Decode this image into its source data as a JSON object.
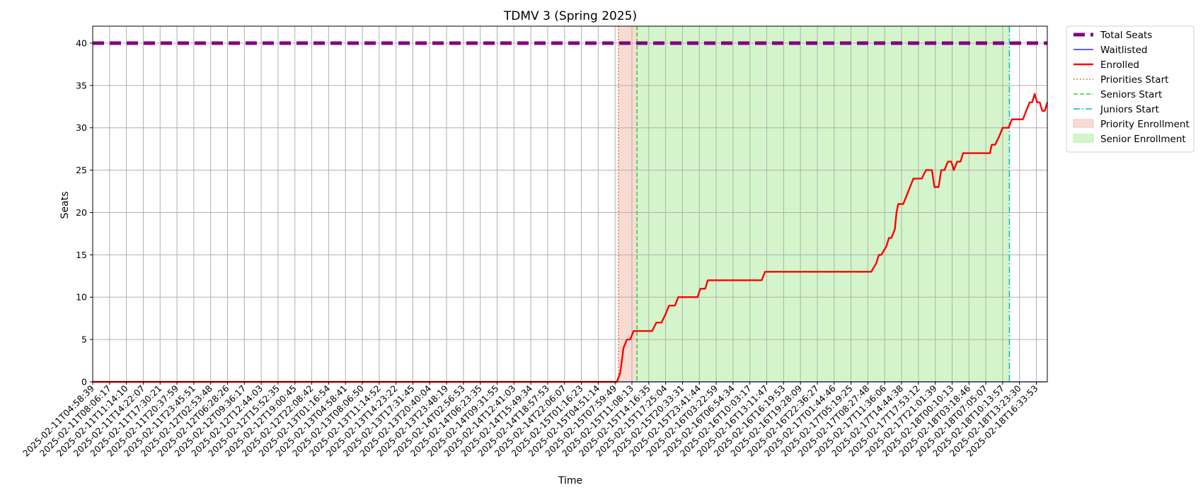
{
  "chart_data": {
    "type": "line",
    "title": "TDMV 3 (Spring 2025)",
    "xlabel": "Time",
    "ylabel": "Seats",
    "ylim": [
      0,
      42
    ],
    "yticks": [
      0,
      5,
      10,
      15,
      20,
      25,
      30,
      35,
      40
    ],
    "grid": true,
    "legend_position": "outside-top-right",
    "x_tick_labels": [
      "2025-02-11T04:58:39",
      "2025-02-11T08:06:17",
      "2025-02-11T11:14:10",
      "2025-02-11T14:22:07",
      "2025-02-11T17:30:21",
      "2025-02-11T20:37:59",
      "2025-02-11T23:45:51",
      "2025-02-12T02:53:48",
      "2025-02-12T06:28:26",
      "2025-02-12T09:36:17",
      "2025-02-12T12:44:03",
      "2025-02-12T15:52:35",
      "2025-02-12T19:00:45",
      "2025-02-12T22:08:42",
      "2025-02-13T01:16:54",
      "2025-02-13T04:58:41",
      "2025-02-13T08:06:50",
      "2025-02-13T11:14:52",
      "2025-02-13T14:23:22",
      "2025-02-13T17:31:45",
      "2025-02-13T20:40:04",
      "2025-02-13T23:48:19",
      "2025-02-14T02:56:53",
      "2025-02-14T06:23:35",
      "2025-02-14T09:31:55",
      "2025-02-14T12:41:03",
      "2025-02-14T15:49:34",
      "2025-02-14T18:57:53",
      "2025-02-14T22:06:07",
      "2025-02-15T01:16:23",
      "2025-02-15T04:51:14",
      "2025-02-15T07:59:49",
      "2025-02-15T11:08:13",
      "2025-02-15T14:16:35",
      "2025-02-15T17:25:04",
      "2025-02-15T20:33:31",
      "2025-02-15T23:41:44",
      "2025-02-16T03:22:59",
      "2025-02-16T06:54:34",
      "2025-02-16T10:03:17",
      "2025-02-16T13:11:47",
      "2025-02-16T16:19:53",
      "2025-02-16T19:28:09",
      "2025-02-16T22:36:27",
      "2025-02-17T01:44:46",
      "2025-02-17T05:19:25",
      "2025-02-17T08:27:48",
      "2025-02-17T11:36:06",
      "2025-02-17T14:44:38",
      "2025-02-17T17:53:12",
      "2025-02-17T21:01:39",
      "2025-02-18T00:10:13",
      "2025-02-18T03:18:46",
      "2025-02-18T07:05:07",
      "2025-02-18T10:13:57",
      "2025-02-18T13:23:30",
      "2025-02-18T16:33:53"
    ],
    "x_range": [
      0,
      56.65
    ],
    "series": [
      {
        "name": "Total Seats",
        "color": "#800080",
        "style": "dashed-thick",
        "points": [
          [
            0,
            40
          ],
          [
            56.65,
            40
          ]
        ]
      },
      {
        "name": "Waitlisted",
        "color": "#0000ff",
        "style": "solid-thin",
        "points": [
          [
            0,
            0
          ],
          [
            56.65,
            0
          ]
        ]
      },
      {
        "name": "Enrolled",
        "color": "#ff0000",
        "style": "solid-thick",
        "points": [
          [
            0,
            0
          ],
          [
            31.1,
            0
          ],
          [
            31.3,
            1
          ],
          [
            31.5,
            4
          ],
          [
            31.7,
            5
          ],
          [
            31.9,
            5
          ],
          [
            32.1,
            6
          ],
          [
            33.0,
            6
          ],
          [
            33.2,
            6
          ],
          [
            33.45,
            7
          ],
          [
            33.75,
            7
          ],
          [
            34.0,
            8
          ],
          [
            34.2,
            9
          ],
          [
            34.55,
            9
          ],
          [
            34.75,
            10
          ],
          [
            35.9,
            10
          ],
          [
            36.05,
            11
          ],
          [
            36.35,
            11
          ],
          [
            36.5,
            12
          ],
          [
            39.0,
            12
          ],
          [
            39.7,
            12
          ],
          [
            39.9,
            13
          ],
          [
            46.2,
            13
          ],
          [
            46.5,
            14
          ],
          [
            46.65,
            15
          ],
          [
            46.8,
            15
          ],
          [
            47.1,
            16
          ],
          [
            47.25,
            17
          ],
          [
            47.4,
            17
          ],
          [
            47.6,
            18
          ],
          [
            47.7,
            20
          ],
          [
            47.8,
            21
          ],
          [
            48.1,
            21
          ],
          [
            48.3,
            22
          ],
          [
            48.7,
            24
          ],
          [
            49.2,
            24
          ],
          [
            49.45,
            25
          ],
          [
            49.8,
            25
          ],
          [
            49.95,
            23
          ],
          [
            50.2,
            23
          ],
          [
            50.35,
            25
          ],
          [
            50.55,
            25
          ],
          [
            50.75,
            26
          ],
          [
            50.95,
            26
          ],
          [
            51.1,
            25
          ],
          [
            51.3,
            26
          ],
          [
            51.5,
            26
          ],
          [
            51.65,
            27
          ],
          [
            53.25,
            27
          ],
          [
            53.35,
            28
          ],
          [
            53.55,
            28
          ],
          [
            53.8,
            29
          ],
          [
            54.0,
            30
          ],
          [
            54.2,
            30
          ],
          [
            54.35,
            30
          ],
          [
            54.55,
            31
          ],
          [
            55.2,
            31
          ],
          [
            55.4,
            32
          ],
          [
            55.6,
            33
          ],
          [
            55.75,
            33
          ],
          [
            55.9,
            34
          ],
          [
            56.05,
            33
          ],
          [
            56.2,
            33
          ],
          [
            56.35,
            32
          ],
          [
            56.5,
            32
          ],
          [
            56.65,
            33
          ]
        ]
      }
    ],
    "markers": [
      {
        "name": "Priorities Start",
        "x": 31.2,
        "color": "#ff4500",
        "style": "dotted"
      },
      {
        "name": "Seniors Start",
        "x": 32.3,
        "color": "#32cd32",
        "style": "dashed"
      },
      {
        "name": "Juniors Start",
        "x": 54.4,
        "color": "#00bfbf",
        "style": "dashdot"
      }
    ],
    "spans": [
      {
        "name": "Priority Enrollment",
        "x0": 31.2,
        "x1": 32.3,
        "color": "#f4c5b4"
      },
      {
        "name": "Senior Enrollment",
        "x0": 32.3,
        "x1": 54.4,
        "color": "#b8eea8"
      }
    ],
    "legend": [
      {
        "label": "Total Seats",
        "kind": "line",
        "color": "#800080",
        "style": "dashed-thick"
      },
      {
        "label": "Waitlisted",
        "kind": "line",
        "color": "#0000ff",
        "style": "solid-thin"
      },
      {
        "label": "Enrolled",
        "kind": "line",
        "color": "#ff0000",
        "style": "solid-thick"
      },
      {
        "label": "Priorities Start",
        "kind": "line",
        "color": "#ff4500",
        "style": "dotted"
      },
      {
        "label": "Seniors Start",
        "kind": "line",
        "color": "#32cd32",
        "style": "dashed"
      },
      {
        "label": "Juniors Start",
        "kind": "line",
        "color": "#00bfbf",
        "style": "dashdot"
      },
      {
        "label": "Priority Enrollment",
        "kind": "patch",
        "color": "#f4c5b4"
      },
      {
        "label": "Senior Enrollment",
        "kind": "patch",
        "color": "#b8eea8"
      }
    ]
  }
}
